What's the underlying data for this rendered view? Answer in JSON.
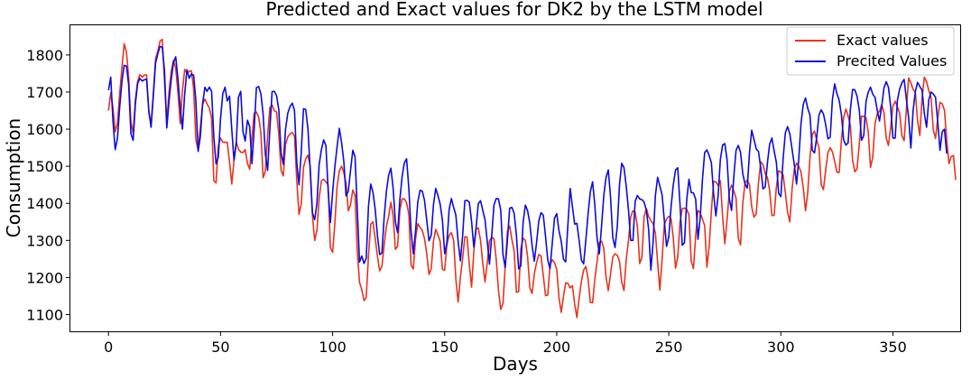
{
  "chart_data": {
    "type": "line",
    "title": "Predicted and Exact values for DK2 by the LSTM model",
    "xlabel": "Days",
    "ylabel": "Consumption",
    "xlim": [
      -17,
      380
    ],
    "ylim": [
      1055,
      1880
    ],
    "x_ticks": [
      0,
      50,
      100,
      150,
      200,
      250,
      300,
      350
    ],
    "y_ticks": [
      1100,
      1200,
      1300,
      1400,
      1500,
      1600,
      1700,
      1800
    ],
    "legend_position": "top-right",
    "grid": false,
    "series": [
      {
        "name": "Exact values",
        "color": "#e8331f",
        "values": [
          1650,
          1698,
          1658,
          1593,
          1616,
          1697,
          1765,
          1830,
          1808,
          1739,
          1621,
          1588,
          1680,
          1729,
          1747,
          1740,
          1746,
          1746,
          1643,
          1612,
          1696,
          1790,
          1810,
          1837,
          1842,
          1726,
          1618,
          1700,
          1756,
          1786,
          1764,
          1699,
          1615,
          1705,
          1761,
          1750,
          1756,
          1757,
          1708,
          1570,
          1544,
          1605,
          1667,
          1681,
          1668,
          1657,
          1630,
          1461,
          1455,
          1555,
          1576,
          1565,
          1564,
          1565,
          1512,
          1452,
          1516,
          1565,
          1546,
          1538,
          1537,
          1545,
          1508,
          1492,
          1576,
          1643,
          1646,
          1633,
          1591,
          1469,
          1487,
          1583,
          1658,
          1665,
          1650,
          1646,
          1586,
          1489,
          1474,
          1559,
          1579,
          1587,
          1591,
          1581,
          1463,
          1370,
          1398,
          1497,
          1520,
          1530,
          1500,
          1367,
          1300,
          1327,
          1415,
          1461,
          1465,
          1458,
          1450,
          1280,
          1268,
          1346,
          1446,
          1488,
          1500,
          1483,
          1454,
          1380,
          1396,
          1436,
          1422,
          1272,
          1187,
          1168,
          1138,
          1146,
          1259,
          1344,
          1350,
          1305,
          1258,
          1218,
          1230,
          1288,
          1338,
          1365,
          1403,
          1367,
          1276,
          1284,
          1381,
          1412,
          1412,
          1402,
          1371,
          1234,
          1223,
          1304,
          1345,
          1335,
          1327,
          1305,
          1264,
          1208,
          1224,
          1298,
          1330,
          1315,
          1297,
          1222,
          1220,
          1289,
          1314,
          1321,
          1300,
          1195,
          1134,
          1200,
          1251,
          1310,
          1309,
          1234,
          1174,
          1270,
          1330,
          1334,
          1300,
          1238,
          1188,
          1240,
          1299,
          1309,
          1304,
          1249,
          1166,
          1114,
          1130,
          1228,
          1325,
          1339,
          1302,
          1272,
          1160,
          1162,
          1278,
          1306,
          1300,
          1256,
          1172,
          1157,
          1210,
          1240,
          1262,
          1258,
          1205,
          1151,
          1153,
          1234,
          1248,
          1240,
          1222,
          1146,
          1106,
          1149,
          1186,
          1184,
          1172,
          1178,
          1128,
          1092,
          1145,
          1190,
          1220,
          1230,
          1196,
          1133,
          1132,
          1196,
          1243,
          1295,
          1298,
          1279,
          1200,
          1165,
          1209,
          1255,
          1264,
          1260,
          1244,
          1187,
          1165,
          1248,
          1299,
          1364,
          1380,
          1376,
          1337,
          1238,
          1254,
          1365,
          1386,
          1364,
          1354,
          1345,
          1320,
          1242,
          1166,
          1248,
          1343,
          1358,
          1365,
          1358,
          1307,
          1225,
          1255,
          1349,
          1386,
          1387,
          1384,
          1368,
          1244,
          1224,
          1313,
          1381,
          1375,
          1358,
          1340,
          1228,
          1283,
          1380,
          1459,
          1458,
          1448,
          1461,
          1365,
          1291,
          1356,
          1432,
          1449,
          1433,
          1414,
          1306,
          1288,
          1399,
          1455,
          1463,
          1450,
          1390,
          1363,
          1371,
          1454,
          1512,
          1505,
          1480,
          1470,
          1434,
          1367,
          1368,
          1444,
          1488,
          1484,
          1477,
          1429,
          1376,
          1350,
          1438,
          1493,
          1508,
          1500,
          1484,
          1442,
          1380,
          1430,
          1525,
          1585,
          1595,
          1570,
          1550,
          1450,
          1437,
          1490,
          1537,
          1550,
          1539,
          1513,
          1484,
          1483,
          1569,
          1631,
          1654,
          1636,
          1610,
          1516,
          1485,
          1493,
          1561,
          1635,
          1634,
          1630,
          1591,
          1497,
          1524,
          1614,
          1642,
          1648,
          1666,
          1645,
          1576,
          1556,
          1605,
          1662,
          1675,
          1660,
          1642,
          1583,
          1569,
          1654,
          1738,
          1725,
          1707,
          1700,
          1622,
          1583,
          1683,
          1740,
          1728,
          1704,
          1686,
          1598,
          1575,
          1630,
          1672,
          1668,
          1651,
          1571,
          1507,
          1526,
          1529,
          1463
        ]
      },
      {
        "name": "Precited Values",
        "color": "#0b0be0",
        "values": [
          1705,
          1740,
          1622,
          1545,
          1575,
          1660,
          1729,
          1772,
          1770,
          1720,
          1588,
          1570,
          1668,
          1723,
          1737,
          1730,
          1733,
          1735,
          1650,
          1605,
          1689,
          1778,
          1803,
          1823,
          1821,
          1757,
          1603,
          1675,
          1734,
          1780,
          1795,
          1735,
          1660,
          1600,
          1695,
          1760,
          1737,
          1749,
          1745,
          1675,
          1540,
          1581,
          1669,
          1713,
          1702,
          1713,
          1702,
          1578,
          1506,
          1525,
          1629,
          1696,
          1713,
          1676,
          1689,
          1600,
          1516,
          1562,
          1686,
          1702,
          1593,
          1568,
          1624,
          1607,
          1507,
          1600,
          1712,
          1715,
          1695,
          1640,
          1532,
          1489,
          1600,
          1701,
          1702,
          1690,
          1652,
          1536,
          1505,
          1600,
          1643,
          1661,
          1670,
          1650,
          1510,
          1450,
          1537,
          1655,
          1653,
          1600,
          1490,
          1374,
          1356,
          1400,
          1505,
          1545,
          1571,
          1556,
          1435,
          1348,
          1430,
          1498,
          1553,
          1602,
          1564,
          1513,
          1420,
          1433,
          1489,
          1543,
          1526,
          1385,
          1242,
          1258,
          1238,
          1252,
          1392,
          1452,
          1430,
          1384,
          1313,
          1262,
          1266,
          1363,
          1432,
          1476,
          1495,
          1441,
          1349,
          1321,
          1410,
          1472,
          1509,
          1520,
          1441,
          1326,
          1264,
          1325,
          1403,
          1435,
          1433,
          1408,
          1355,
          1299,
          1314,
          1396,
          1440,
          1421,
          1397,
          1354,
          1264,
          1294,
          1384,
          1413,
          1389,
          1368,
          1297,
          1245,
          1312,
          1407,
          1408,
          1403,
          1351,
          1282,
          1333,
          1399,
          1407,
          1381,
          1356,
          1297,
          1236,
          1314,
          1396,
          1413,
          1412,
          1382,
          1263,
          1227,
          1302,
          1387,
          1389,
          1373,
          1315,
          1223,
          1232,
          1349,
          1395,
          1380,
          1346,
          1286,
          1244,
          1294,
          1353,
          1375,
          1368,
          1311,
          1247,
          1224,
          1292,
          1360,
          1372,
          1326,
          1298,
          1249,
          1242,
          1345,
          1440,
          1391,
          1344,
          1346,
          1300,
          1247,
          1237,
          1302,
          1373,
          1432,
          1458,
          1395,
          1306,
          1264,
          1339,
          1421,
          1470,
          1490,
          1418,
          1308,
          1281,
          1336,
          1450,
          1508,
          1496,
          1447,
          1383,
          1300,
          1300,
          1406,
          1421,
          1412,
          1410,
          1403,
          1381,
          1330,
          1220,
          1296,
          1420,
          1470,
          1447,
          1423,
          1354,
          1284,
          1310,
          1390,
          1450,
          1490,
          1496,
          1397,
          1287,
          1294,
          1410,
          1465,
          1429,
          1428,
          1411,
          1303,
          1360,
          1463,
          1537,
          1544,
          1529,
          1509,
          1425,
          1366,
          1420,
          1518,
          1557,
          1561,
          1517,
          1412,
          1381,
          1472,
          1543,
          1556,
          1538,
          1480,
          1452,
          1441,
          1537,
          1597,
          1572,
          1547,
          1540,
          1497,
          1439,
          1444,
          1509,
          1560,
          1576,
          1541,
          1510,
          1427,
          1418,
          1520,
          1590,
          1607,
          1587,
          1546,
          1504,
          1452,
          1521,
          1616,
          1667,
          1684,
          1656,
          1637,
          1543,
          1536,
          1578,
          1638,
          1652,
          1641,
          1612,
          1574,
          1578,
          1680,
          1722,
          1696,
          1678,
          1640,
          1571,
          1557,
          1563,
          1652,
          1707,
          1706,
          1689,
          1651,
          1570,
          1583,
          1675,
          1700,
          1713,
          1694,
          1686,
          1651,
          1622,
          1662,
          1711,
          1728,
          1713,
          1660,
          1576,
          1576,
          1678,
          1708,
          1725,
          1734,
          1681,
          1631,
          1549,
          1650,
          1702,
          1726,
          1715,
          1705,
          1643,
          1605,
          1679,
          1700,
          1695,
          1686,
          1619,
          1543,
          1593,
          1600,
          1534
        ]
      }
    ]
  }
}
